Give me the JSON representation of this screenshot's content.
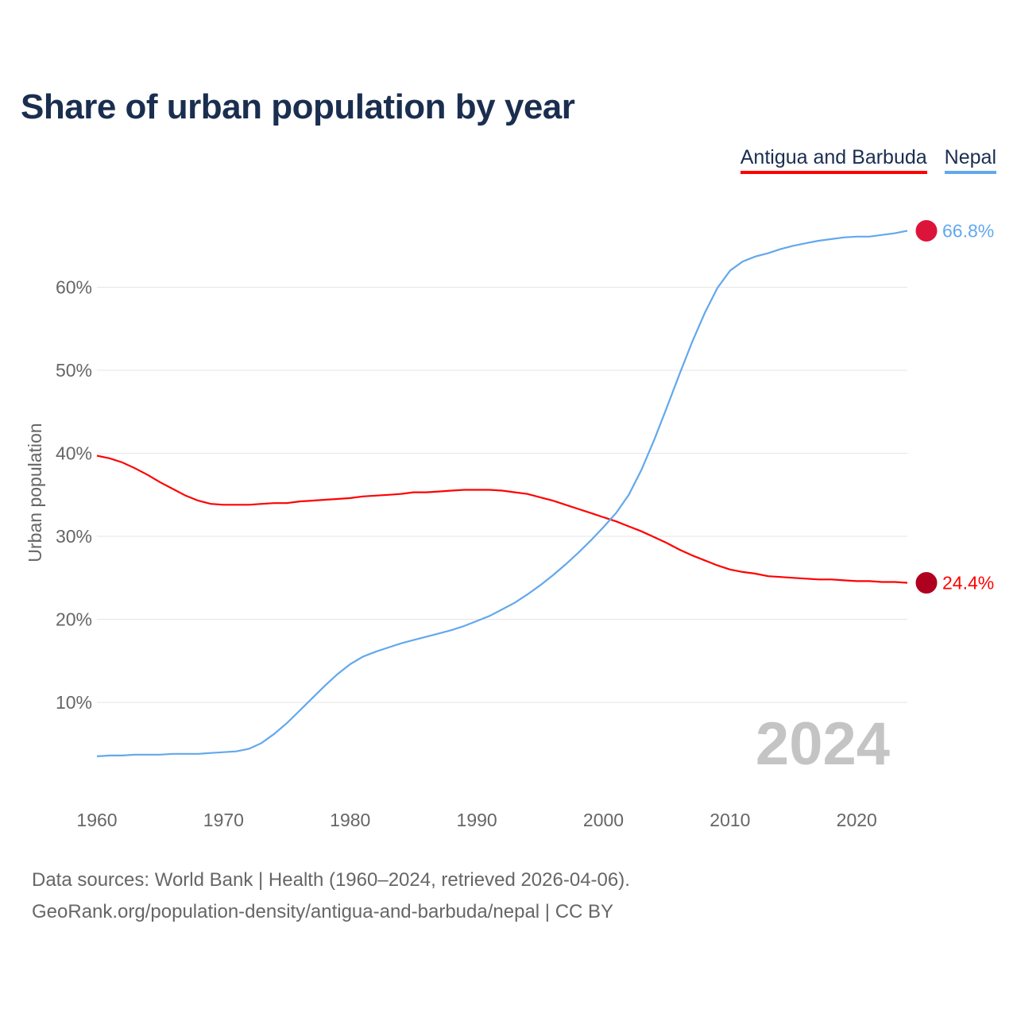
{
  "title": "Share of urban population by year",
  "legend": [
    "Antigua and Barbuda",
    "Nepal"
  ],
  "chart_data": {
    "type": "line",
    "title": "Share of urban population by year",
    "xlabel": "",
    "ylabel": "Urban population",
    "xlim": [
      1960,
      2024
    ],
    "ylim": [
      0,
      70
    ],
    "x_ticks": [
      "1960",
      "1970",
      "1980",
      "1990",
      "2000",
      "2010",
      "2020"
    ],
    "y_ticks": [
      "10%",
      "20%",
      "30%",
      "40%",
      "50%",
      "60%"
    ],
    "grid": true,
    "legend_position": "top-right",
    "year_watermark": "2024",
    "series": [
      {
        "name": "Antigua and Barbuda",
        "color": "#ff0000",
        "end_label": "24.4%",
        "values": [
          39.7,
          39.4,
          38.9,
          38.2,
          37.4,
          36.5,
          35.7,
          34.9,
          34.3,
          33.9,
          33.8,
          33.8,
          33.8,
          33.9,
          34.0,
          34.0,
          34.2,
          34.3,
          34.4,
          34.5,
          34.6,
          34.8,
          34.9,
          35.0,
          35.1,
          35.3,
          35.3,
          35.4,
          35.5,
          35.6,
          35.6,
          35.6,
          35.5,
          35.3,
          35.1,
          34.7,
          34.3,
          33.8,
          33.3,
          32.8,
          32.3,
          31.8,
          31.2,
          30.6,
          29.9,
          29.2,
          28.4,
          27.7,
          27.1,
          26.5,
          26.0,
          25.7,
          25.5,
          25.2,
          25.1,
          25.0,
          24.9,
          24.8,
          24.8,
          24.7,
          24.6,
          24.6,
          24.5,
          24.5,
          24.4
        ]
      },
      {
        "name": "Nepal",
        "color": "#63a8ec",
        "end_label": "66.8%",
        "values": [
          3.5,
          3.6,
          3.6,
          3.7,
          3.7,
          3.7,
          3.8,
          3.8,
          3.8,
          3.9,
          4.0,
          4.1,
          4.4,
          5.1,
          6.2,
          7.5,
          9.0,
          10.5,
          12.0,
          13.4,
          14.6,
          15.5,
          16.1,
          16.6,
          17.1,
          17.5,
          17.9,
          18.3,
          18.7,
          19.2,
          19.8,
          20.4,
          21.2,
          22.0,
          23.0,
          24.1,
          25.3,
          26.6,
          28.0,
          29.5,
          31.1,
          32.8,
          35.0,
          38.0,
          41.6,
          45.5,
          49.5,
          53.4,
          56.9,
          59.9,
          62.0,
          63.1,
          63.7,
          64.1,
          64.6,
          65.0,
          65.3,
          65.6,
          65.8,
          66.0,
          66.1,
          66.1,
          66.3,
          66.5,
          66.8
        ]
      }
    ]
  },
  "source_lines": [
    "Data sources: World Bank | Health (1960–2024, retrieved 2026-04-06).",
    "GeoRank.org/population-density/antigua-and-barbuda/nepal | CC BY"
  ]
}
